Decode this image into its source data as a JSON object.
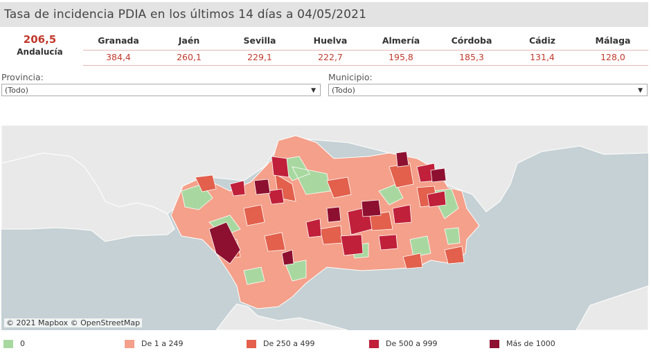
{
  "title": "Tasa de incidencia PDIA en los últimos 14 días a 04/05/2021",
  "summary": {
    "value": "206,5",
    "label": "Andalucía"
  },
  "provinces": [
    {
      "name": "Granada",
      "value": "384,4"
    },
    {
      "name": "Jaén",
      "value": "260,1"
    },
    {
      "name": "Sevilla",
      "value": "229,1"
    },
    {
      "name": "Huelva",
      "value": "222,7"
    },
    {
      "name": "Almería",
      "value": "195,8"
    },
    {
      "name": "Córdoba",
      "value": "185,3"
    },
    {
      "name": "Cádiz",
      "value": "131,4"
    },
    {
      "name": "Málaga",
      "value": "128,0"
    }
  ],
  "filters": {
    "provincia": {
      "label": "Provincia:",
      "value": "(Todo)"
    },
    "municipio": {
      "label": "Municipio:",
      "value": "(Todo)"
    }
  },
  "map": {
    "attribution": "© 2021 Mapbox © OpenStreetMap",
    "colors": {
      "sea": "#c5d1d4",
      "land": "#e9e9e9",
      "border": "#ffffff"
    }
  },
  "legend": [
    {
      "label": "0",
      "color": "#a8d8a0"
    },
    {
      "label": "De 1 a 249",
      "color": "#f4a08a"
    },
    {
      "label": "De 250 a 499",
      "color": "#e2604c"
    },
    {
      "label": "De 500 a 999",
      "color": "#c0203a"
    },
    {
      "label": "Más de 1000",
      "color": "#8e1030"
    }
  ]
}
